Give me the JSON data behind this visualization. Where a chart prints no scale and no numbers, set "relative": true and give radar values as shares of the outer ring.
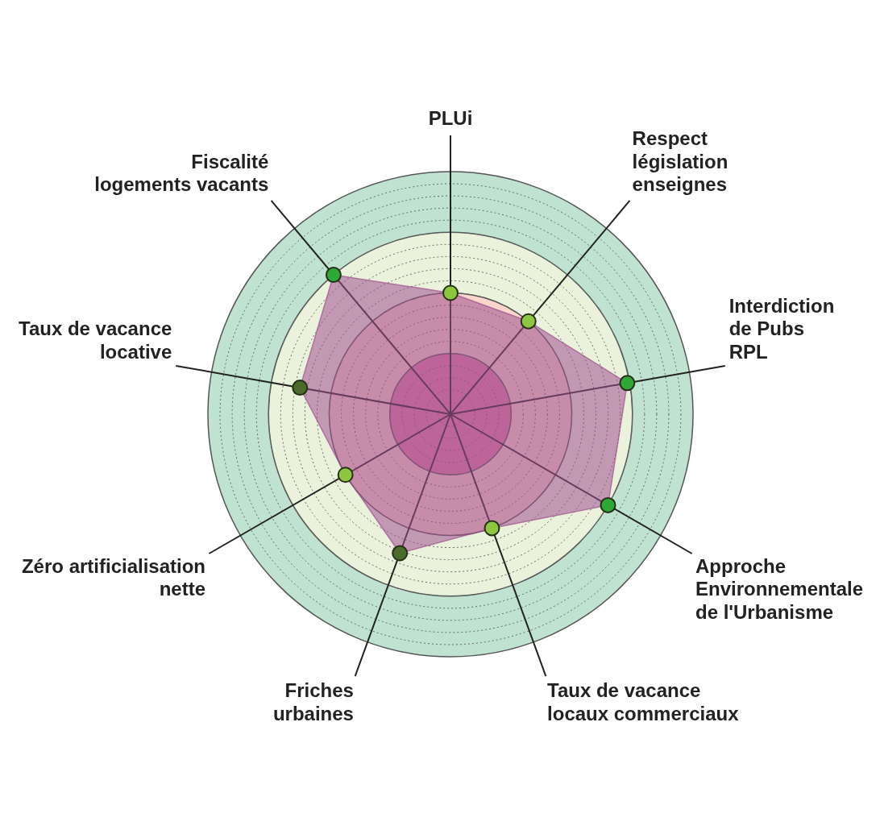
{
  "chart_data": {
    "type": "radar",
    "relative": true,
    "categories": [
      "PLUi",
      "Respect\nlégislation\nenseignes",
      "Interdiction\nde Pubs\nRPL",
      "Approche\nEnvironnementale\nde l'Urbanisme",
      "Taux de vacance\nlocaux commerciaux",
      "Friches\nurbaines",
      "Zéro artificialisation\nnette",
      "Taux de vacance\nlocative",
      "Fiscalité\nlogements vacants"
    ],
    "series": [
      {
        "color": "#a0508f",
        "colors": [
          "#8dc63f",
          "#8dc63f",
          "#2ea836",
          "#2ea836",
          "#8dc63f",
          "#4a6b2a",
          "#8dc63f",
          "#4a6b2a",
          "#2ea836"
        ],
        "values": [
          0.5,
          0.5,
          0.74,
          0.75,
          0.5,
          0.61,
          0.5,
          0.63,
          0.75
        ]
      }
    ],
    "grid": true,
    "marker": "circle",
    "legend": false
  }
}
